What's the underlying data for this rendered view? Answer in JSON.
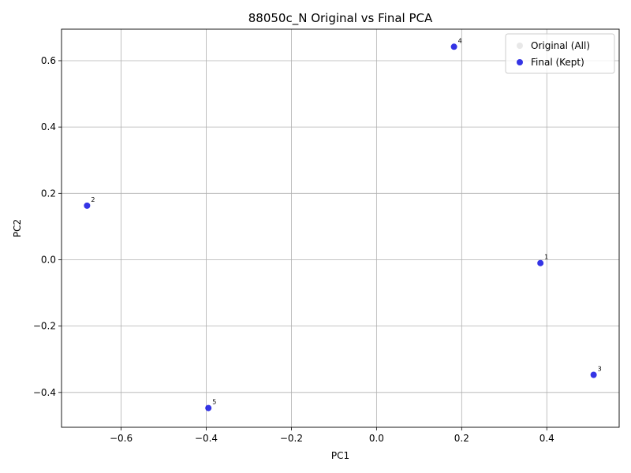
{
  "chart_data": {
    "type": "scatter",
    "title": "88050c_N Original vs Final PCA",
    "xlabel": "PC1",
    "ylabel": "PC2",
    "xlim": [
      -0.74,
      0.57
    ],
    "ylim": [
      -0.505,
      0.695
    ],
    "xticks": [
      -0.6,
      -0.4,
      -0.2,
      0.0,
      0.2,
      0.4
    ],
    "xtick_labels": [
      "−0.6",
      "−0.4",
      "−0.2",
      "0.0",
      "0.2",
      "0.4"
    ],
    "yticks": [
      -0.4,
      -0.2,
      0.0,
      0.2,
      0.4,
      0.6
    ],
    "ytick_labels": [
      "−0.4",
      "−0.2",
      "0.0",
      "0.2",
      "0.4",
      "0.6"
    ],
    "grid": true,
    "legend_position": "top-right",
    "series": [
      {
        "name": "Original (All)",
        "color": "#d9d9d9",
        "points": []
      },
      {
        "name": "Final (Kept)",
        "color": "#1010e0",
        "points": [
          {
            "label": "1",
            "x": 0.385,
            "y": -0.01
          },
          {
            "label": "2",
            "x": -0.68,
            "y": 0.163
          },
          {
            "label": "3",
            "x": 0.51,
            "y": -0.347
          },
          {
            "label": "4",
            "x": 0.182,
            "y": 0.642
          },
          {
            "label": "5",
            "x": -0.395,
            "y": -0.447
          }
        ]
      }
    ]
  }
}
